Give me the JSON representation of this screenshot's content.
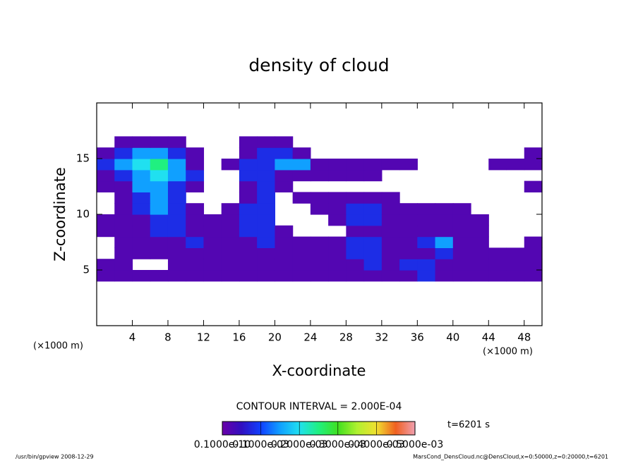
{
  "chart_data": {
    "type": "contour",
    "title": "density of cloud",
    "xlabel": "X-coordinate",
    "ylabel": "Z-coordinate",
    "x_unit": "(×1000 m)",
    "y_unit": "(×1000 m)",
    "xlim": [
      0,
      50
    ],
    "ylim": [
      0,
      20
    ],
    "xticks": [
      4,
      8,
      12,
      16,
      20,
      24,
      28,
      32,
      36,
      40,
      44,
      48
    ],
    "yticks": [
      5,
      10,
      15
    ],
    "x": [
      1,
      3,
      5,
      7,
      9,
      11,
      13,
      15,
      17,
      19,
      21,
      23,
      25,
      27,
      29,
      31,
      33,
      35,
      37,
      39,
      41,
      43,
      45,
      47,
      49
    ],
    "z": [
      4.5,
      5.5,
      6.5,
      7.5,
      8.5,
      9.5,
      10.5,
      11.5,
      12.5,
      13.5,
      14.5,
      15.5,
      16.5
    ],
    "values": [
      [
        2e-05,
        2e-05,
        2e-05,
        2e-05,
        2e-05,
        2e-05,
        2e-05,
        2e-05,
        2e-05,
        2e-05,
        2e-05,
        2e-05,
        2e-05,
        2e-05,
        2e-05,
        2e-05,
        2e-05,
        2e-05,
        8e-05,
        2e-05,
        2e-05,
        2e-05,
        2e-05,
        2e-05,
        2e-05
      ],
      [
        2e-05,
        2e-05,
        0,
        0,
        2e-05,
        2e-05,
        2e-05,
        2e-05,
        2e-05,
        2e-05,
        2e-05,
        2e-05,
        2e-05,
        2e-05,
        2e-05,
        8e-05,
        2e-05,
        8e-05,
        8e-05,
        2e-05,
        2e-05,
        2e-05,
        2e-05,
        2e-05,
        2e-05
      ],
      [
        0,
        2e-05,
        2e-05,
        2e-05,
        2e-05,
        2e-05,
        2e-05,
        2e-05,
        2e-05,
        2e-05,
        2e-05,
        2e-05,
        2e-05,
        2e-05,
        8e-05,
        8e-05,
        2e-05,
        2e-05,
        2e-05,
        8e-05,
        2e-05,
        2e-05,
        2e-05,
        2e-05,
        2e-05
      ],
      [
        0,
        2e-05,
        2e-05,
        2e-05,
        2e-05,
        8e-05,
        2e-05,
        2e-05,
        2e-05,
        8e-05,
        2e-05,
        2e-05,
        2e-05,
        2e-05,
        8e-05,
        8e-05,
        2e-05,
        2e-05,
        8e-05,
        0.00015,
        2e-05,
        2e-05,
        0,
        0,
        2e-05
      ],
      [
        2e-05,
        2e-05,
        2e-05,
        8e-05,
        8e-05,
        2e-05,
        2e-05,
        2e-05,
        8e-05,
        8e-05,
        2e-05,
        0,
        0,
        0,
        2e-05,
        2e-05,
        2e-05,
        2e-05,
        2e-05,
        2e-05,
        2e-05,
        2e-05,
        0,
        0,
        0
      ],
      [
        2e-05,
        2e-05,
        2e-05,
        8e-05,
        8e-05,
        2e-05,
        2e-05,
        2e-05,
        8e-05,
        8e-05,
        0,
        0,
        0,
        2e-05,
        8e-05,
        8e-05,
        2e-05,
        2e-05,
        2e-05,
        2e-05,
        2e-05,
        2e-05,
        0,
        0,
        0
      ],
      [
        0,
        2e-05,
        8e-05,
        0.00015,
        8e-05,
        2e-05,
        0,
        2e-05,
        8e-05,
        8e-05,
        0,
        0,
        2e-05,
        2e-05,
        8e-05,
        8e-05,
        2e-05,
        2e-05,
        2e-05,
        2e-05,
        2e-05,
        0,
        0,
        0,
        0
      ],
      [
        0,
        2e-05,
        8e-05,
        0.00015,
        8e-05,
        0,
        0,
        0,
        2e-05,
        8e-05,
        0,
        2e-05,
        2e-05,
        2e-05,
        2e-05,
        2e-05,
        2e-05,
        0,
        0,
        0,
        0,
        0,
        0,
        0,
        0
      ],
      [
        2e-05,
        2e-05,
        0.00015,
        0.00015,
        8e-05,
        2e-05,
        0,
        0,
        2e-05,
        8e-05,
        2e-05,
        0,
        0,
        0,
        0,
        0,
        0,
        0,
        0,
        0,
        0,
        0,
        0,
        0,
        2e-05
      ],
      [
        2e-05,
        8e-05,
        0.00015,
        0.0002,
        0.00015,
        8e-05,
        0,
        0,
        8e-05,
        8e-05,
        2e-05,
        2e-05,
        2e-05,
        2e-05,
        2e-05,
        2e-05,
        0,
        0,
        0,
        0,
        0,
        0,
        0,
        0,
        0
      ],
      [
        8e-05,
        0.00015,
        0.0002,
        0.00025,
        0.00015,
        2e-05,
        0,
        2e-05,
        8e-05,
        8e-05,
        0.00015,
        0.00015,
        2e-05,
        2e-05,
        2e-05,
        2e-05,
        2e-05,
        2e-05,
        0,
        0,
        0,
        0,
        2e-05,
        2e-05,
        2e-05
      ],
      [
        2e-05,
        8e-05,
        0.00015,
        0.00015,
        8e-05,
        2e-05,
        0,
        0,
        2e-05,
        8e-05,
        8e-05,
        2e-05,
        0,
        0,
        0,
        0,
        0,
        0,
        0,
        0,
        0,
        0,
        0,
        0,
        2e-05
      ],
      [
        0,
        2e-05,
        2e-05,
        2e-05,
        2e-05,
        0,
        0,
        0,
        2e-05,
        2e-05,
        2e-05,
        0,
        0,
        0,
        0,
        0,
        0,
        0,
        0,
        0,
        0,
        0,
        0,
        0,
        0
      ]
    ],
    "clim": [
      0,
      0.0005
    ],
    "colormap": [
      "#6a00a8",
      "#3010c0",
      "#1040ff",
      "#10a0ff",
      "#20e0f0",
      "#20f080",
      "#40e020",
      "#b0f030",
      "#f0e030",
      "#f06020",
      "#f0a0b0"
    ],
    "colorbar_ticks": [
      {
        "value": 1e-11,
        "label": "0.1000e-10"
      },
      {
        "value": 0.0001,
        "label": "0.1000e-03"
      },
      {
        "value": 0.0002,
        "label": "0.2000e-03"
      },
      {
        "value": 0.0003,
        "label": "0.3000e-03"
      },
      {
        "value": 0.0004,
        "label": "0.4000e-03"
      },
      {
        "value": 0.0005,
        "label": "0.5000e-03"
      }
    ],
    "contour_interval": "CONTOUR INTERVAL = 2.000E-04",
    "time": "t=6201 s",
    "footer_left": "/usr/bin/gpview  2008-12-29",
    "footer_right": "MarsCond_DensCloud.nc@DensCloud,x=0:50000,z=0:20000,t=6201"
  }
}
